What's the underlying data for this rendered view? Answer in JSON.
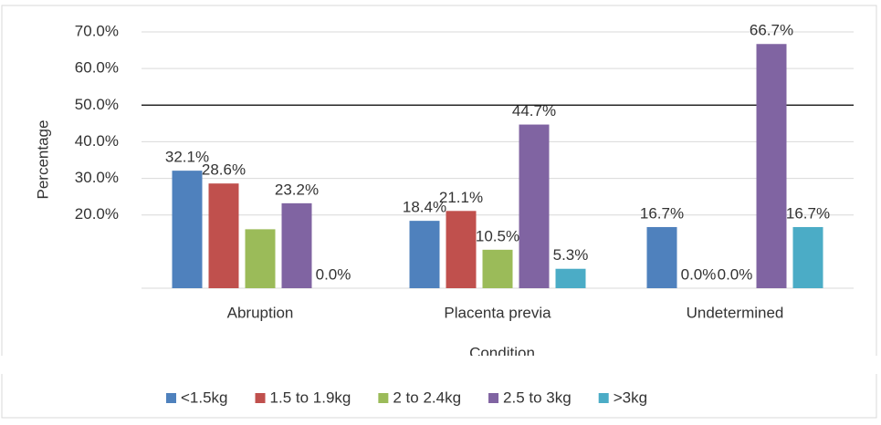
{
  "chart_data": {
    "type": "bar",
    "y_label": "Percentage",
    "x_label": "Condition",
    "categories": [
      "Abruption",
      "Placenta previa",
      "Undetermined"
    ],
    "series": [
      {
        "name": "<1.5kg",
        "color": "#4f81bd",
        "values": [
          32.1,
          18.4,
          16.7
        ],
        "value_labels": [
          "32.1%",
          "18.4%",
          "16.7%"
        ]
      },
      {
        "name": "1.5 to 1.9kg",
        "color": "#c0504d",
        "values": [
          28.6,
          21.1,
          0.0
        ],
        "value_labels": [
          "28.6%",
          "21.1%",
          "0.0%"
        ]
      },
      {
        "name": "2 to 2.4kg",
        "color": "#9bbb59",
        "values": [
          16.1,
          10.5,
          0.0
        ],
        "value_labels": [
          null,
          "10.5%",
          "0.0%"
        ]
      },
      {
        "name": "2.5 to 3kg",
        "color": "#8064a2",
        "values": [
          23.2,
          44.7,
          66.7
        ],
        "value_labels": [
          "23.2%",
          "44.7%",
          "66.7%"
        ]
      },
      {
        "name": ">3kg",
        "color": "#4bacc6",
        "values": [
          0.0,
          5.3,
          16.7
        ],
        "value_labels": [
          "0.0%",
          "5.3%",
          "16.7%"
        ]
      }
    ],
    "ylim": [
      0,
      70
    ],
    "yticks": [
      {
        "value": 20,
        "label": "20.0%"
      },
      {
        "value": 30,
        "label": "30.0%"
      },
      {
        "value": 40,
        "label": "40.0%"
      },
      {
        "value": 50,
        "label": "50.0%"
      },
      {
        "value": 60,
        "label": "60.0%"
      },
      {
        "value": 70,
        "label": "70.0%"
      }
    ],
    "reference_line": 50,
    "grid": true,
    "legend": "bottom"
  }
}
